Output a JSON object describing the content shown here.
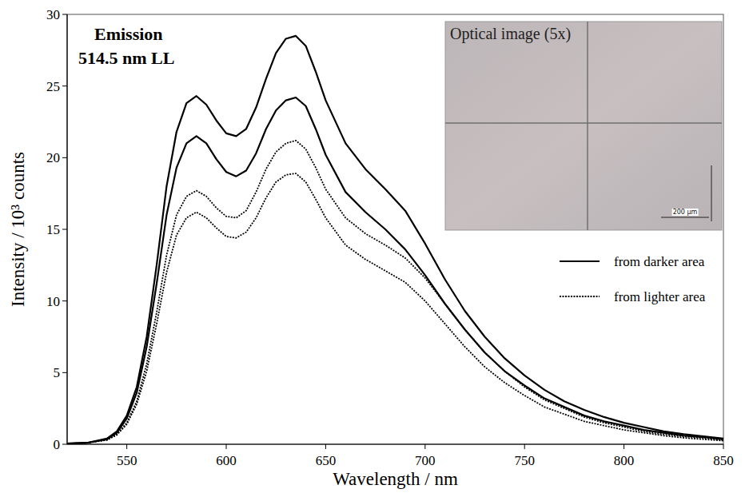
{
  "chart_data": {
    "type": "line",
    "x_label": "Wavelength / nm",
    "y_label": "Intensity / 10³ counts",
    "annotations": [
      "Emission",
      "514.5 nm LL",
      "Optical image (5x)",
      "200 µm"
    ],
    "x": [
      520,
      530,
      540,
      545,
      550,
      555,
      560,
      565,
      570,
      575,
      580,
      585,
      590,
      595,
      600,
      605,
      610,
      615,
      620,
      625,
      630,
      635,
      640,
      645,
      650,
      660,
      670,
      680,
      690,
      700,
      710,
      720,
      730,
      740,
      750,
      760,
      770,
      780,
      790,
      800,
      810,
      820,
      830,
      840,
      850
    ],
    "series": [
      {
        "name": "from darker area",
        "color": "#000000",
        "line_style": "solid",
        "values": [
          0.05,
          0.1,
          0.4,
          0.9,
          2.0,
          4.0,
          7.5,
          12.5,
          18.0,
          21.8,
          23.8,
          24.3,
          23.7,
          22.6,
          21.7,
          21.5,
          22.0,
          23.5,
          25.5,
          27.3,
          28.3,
          28.5,
          27.8,
          26.0,
          24.0,
          21.0,
          19.2,
          17.8,
          16.3,
          14.0,
          11.5,
          9.3,
          7.5,
          6.0,
          4.8,
          3.8,
          3.0,
          2.4,
          1.9,
          1.5,
          1.2,
          0.9,
          0.7,
          0.55,
          0.4
        ]
      },
      {
        "name": "from darker area",
        "color": "#000000",
        "line_style": "solid",
        "values": [
          0.05,
          0.1,
          0.35,
          0.8,
          1.8,
          3.6,
          6.8,
          11.2,
          16.0,
          19.3,
          21.0,
          21.5,
          21.0,
          19.9,
          19.0,
          18.7,
          19.1,
          20.3,
          22.0,
          23.3,
          24.0,
          24.2,
          23.6,
          22.0,
          20.2,
          17.6,
          16.2,
          15.0,
          13.6,
          11.8,
          9.8,
          8.0,
          6.4,
          5.1,
          4.1,
          3.2,
          2.6,
          2.0,
          1.6,
          1.3,
          1.0,
          0.8,
          0.6,
          0.5,
          0.35
        ]
      },
      {
        "name": "from lighter area",
        "color": "#000000",
        "line_style": "dotted",
        "values": [
          0.05,
          0.1,
          0.3,
          0.7,
          1.5,
          3.0,
          5.6,
          9.2,
          13.2,
          16.0,
          17.3,
          17.7,
          17.3,
          16.5,
          15.9,
          15.8,
          16.3,
          17.6,
          19.2,
          20.4,
          21.0,
          21.2,
          20.6,
          19.3,
          17.8,
          15.8,
          14.7,
          13.9,
          13.0,
          11.6,
          9.8,
          8.0,
          6.4,
          5.1,
          4.0,
          3.1,
          2.5,
          1.9,
          1.5,
          1.2,
          0.9,
          0.7,
          0.55,
          0.45,
          0.3
        ]
      },
      {
        "name": "from lighter area",
        "color": "#000000",
        "line_style": "dotted",
        "values": [
          0.05,
          0.1,
          0.3,
          0.65,
          1.4,
          2.8,
          5.1,
          8.4,
          12.0,
          14.6,
          15.8,
          16.2,
          15.8,
          15.1,
          14.5,
          14.4,
          14.8,
          15.8,
          17.2,
          18.3,
          18.8,
          18.9,
          18.3,
          17.1,
          15.8,
          13.9,
          12.9,
          12.1,
          11.3,
          10.0,
          8.4,
          6.8,
          5.4,
          4.3,
          3.4,
          2.6,
          2.1,
          1.6,
          1.3,
          1.0,
          0.8,
          0.6,
          0.45,
          0.35,
          0.25
        ]
      }
    ],
    "xlim": [
      520,
      850
    ],
    "xticks": [
      550,
      600,
      650,
      700,
      750,
      800,
      850
    ],
    "ylim": [
      0,
      30
    ],
    "yticks": [
      0,
      5,
      10,
      15,
      20,
      25,
      30
    ],
    "grid": false,
    "legend": "right"
  }
}
